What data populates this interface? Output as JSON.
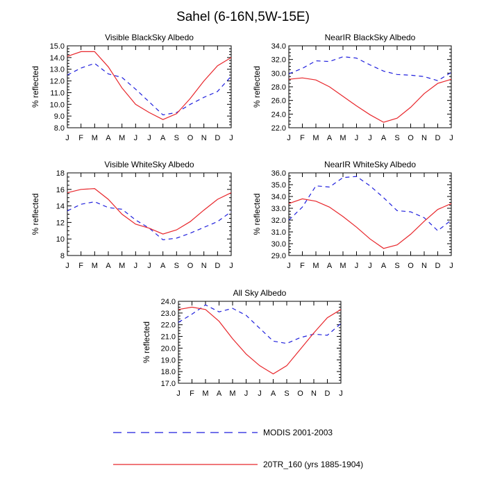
{
  "figure": {
    "title": "Sahel (6-16N,5W-15E)"
  },
  "legend": {
    "entries": [
      {
        "label": "MODIS 2001-2003",
        "color": "#1f1fdd",
        "style": "dashed"
      },
      {
        "label": "20TR_160 (yrs 1885-1904)",
        "color": "#e8262b",
        "style": "solid"
      }
    ]
  },
  "chart_data": [
    {
      "type": "line",
      "title": "Visible BlackSky Albedo",
      "ylabel": "% reflected",
      "x": [
        "J",
        "F",
        "M",
        "A",
        "M",
        "J",
        "J",
        "A",
        "S",
        "O",
        "N",
        "D",
        "J"
      ],
      "ylim": [
        8.0,
        15.0
      ],
      "yticks": [
        "8.0",
        "9.0",
        "10.0",
        "11.0",
        "12.0",
        "13.0",
        "14.0",
        "15.0"
      ],
      "series": [
        {
          "name": "MODIS 2001-2003",
          "values": [
            12.5,
            13.1,
            13.5,
            12.6,
            12.3,
            11.3,
            10.2,
            9.1,
            9.3,
            10.0,
            10.6,
            11.1,
            12.4
          ]
        },
        {
          "name": "20TR_160 (yrs 1885-1904)",
          "values": [
            14.1,
            14.5,
            14.5,
            13.2,
            11.4,
            10.0,
            9.3,
            8.7,
            9.2,
            10.5,
            12.0,
            13.3,
            14.0
          ]
        }
      ]
    },
    {
      "type": "line",
      "title": "NearIR BlackSky Albedo",
      "ylabel": "% reflected",
      "x": [
        "J",
        "F",
        "M",
        "A",
        "M",
        "J",
        "J",
        "A",
        "S",
        "O",
        "N",
        "D",
        "J"
      ],
      "ylim": [
        22.0,
        34.0
      ],
      "yticks": [
        "22.0",
        "24.0",
        "26.0",
        "28.0",
        "30.0",
        "32.0",
        "34.0"
      ],
      "series": [
        {
          "name": "MODIS 2001-2003",
          "values": [
            29.9,
            30.7,
            31.8,
            31.7,
            32.4,
            32.2,
            31.2,
            30.3,
            29.8,
            29.7,
            29.5,
            28.9,
            30.1
          ]
        },
        {
          "name": "20TR_160 (yrs 1885-1904)",
          "values": [
            29.1,
            29.3,
            29.0,
            28.0,
            26.6,
            25.2,
            23.9,
            22.8,
            23.4,
            25.0,
            27.0,
            28.5,
            29.1
          ]
        }
      ]
    },
    {
      "type": "line",
      "title": "Visible WhiteSky Albedo",
      "ylabel": "% reflected",
      "x": [
        "J",
        "F",
        "M",
        "A",
        "M",
        "J",
        "J",
        "A",
        "S",
        "O",
        "N",
        "D",
        "J"
      ],
      "ylim": [
        8,
        18
      ],
      "yticks": [
        "8",
        "10",
        "12",
        "14",
        "16",
        "18"
      ],
      "series": [
        {
          "name": "MODIS 2001-2003",
          "values": [
            13.4,
            14.2,
            14.5,
            13.8,
            13.6,
            12.3,
            11.3,
            9.9,
            10.1,
            10.7,
            11.4,
            12.1,
            13.3
          ]
        },
        {
          "name": "20TR_160 (yrs 1885-1904)",
          "values": [
            15.6,
            16.0,
            16.1,
            14.8,
            13.0,
            11.8,
            11.3,
            10.6,
            11.1,
            12.1,
            13.5,
            14.8,
            15.6
          ]
        }
      ]
    },
    {
      "type": "line",
      "title": "NearIR WhiteSky Albedo",
      "ylabel": "% reflected",
      "x": [
        "J",
        "F",
        "M",
        "A",
        "M",
        "J",
        "J",
        "A",
        "S",
        "O",
        "N",
        "D",
        "J"
      ],
      "ylim": [
        29.0,
        36.0
      ],
      "yticks": [
        "29.0",
        "30.0",
        "31.0",
        "32.0",
        "33.0",
        "34.0",
        "35.0",
        "36.0"
      ],
      "series": [
        {
          "name": "MODIS 2001-2003",
          "values": [
            32.0,
            33.1,
            34.9,
            34.8,
            35.6,
            35.7,
            34.9,
            33.9,
            32.8,
            32.7,
            32.2,
            31.1,
            32.0
          ]
        },
        {
          "name": "20TR_160 (yrs 1885-1904)",
          "values": [
            33.4,
            33.8,
            33.6,
            33.1,
            32.3,
            31.4,
            30.4,
            29.6,
            29.9,
            30.8,
            31.9,
            32.9,
            33.4
          ]
        }
      ]
    },
    {
      "type": "line",
      "title": "All Sky Albedo",
      "ylabel": "% reflected",
      "x": [
        "J",
        "F",
        "M",
        "A",
        "M",
        "J",
        "J",
        "A",
        "S",
        "O",
        "N",
        "D",
        "J"
      ],
      "ylim": [
        17.0,
        24.0
      ],
      "yticks": [
        "17.0",
        "18.0",
        "19.0",
        "20.0",
        "21.0",
        "22.0",
        "23.0",
        "24.0"
      ],
      "series": [
        {
          "name": "MODIS 2001-2003",
          "values": [
            22.2,
            22.9,
            23.7,
            23.1,
            23.4,
            22.8,
            21.7,
            20.6,
            20.4,
            20.9,
            21.2,
            21.1,
            22.1
          ]
        },
        {
          "name": "20TR_160 (yrs 1885-1904)",
          "values": [
            23.3,
            23.5,
            23.3,
            22.3,
            20.8,
            19.5,
            18.5,
            17.8,
            18.5,
            19.9,
            21.3,
            22.6,
            23.3
          ]
        }
      ]
    }
  ]
}
